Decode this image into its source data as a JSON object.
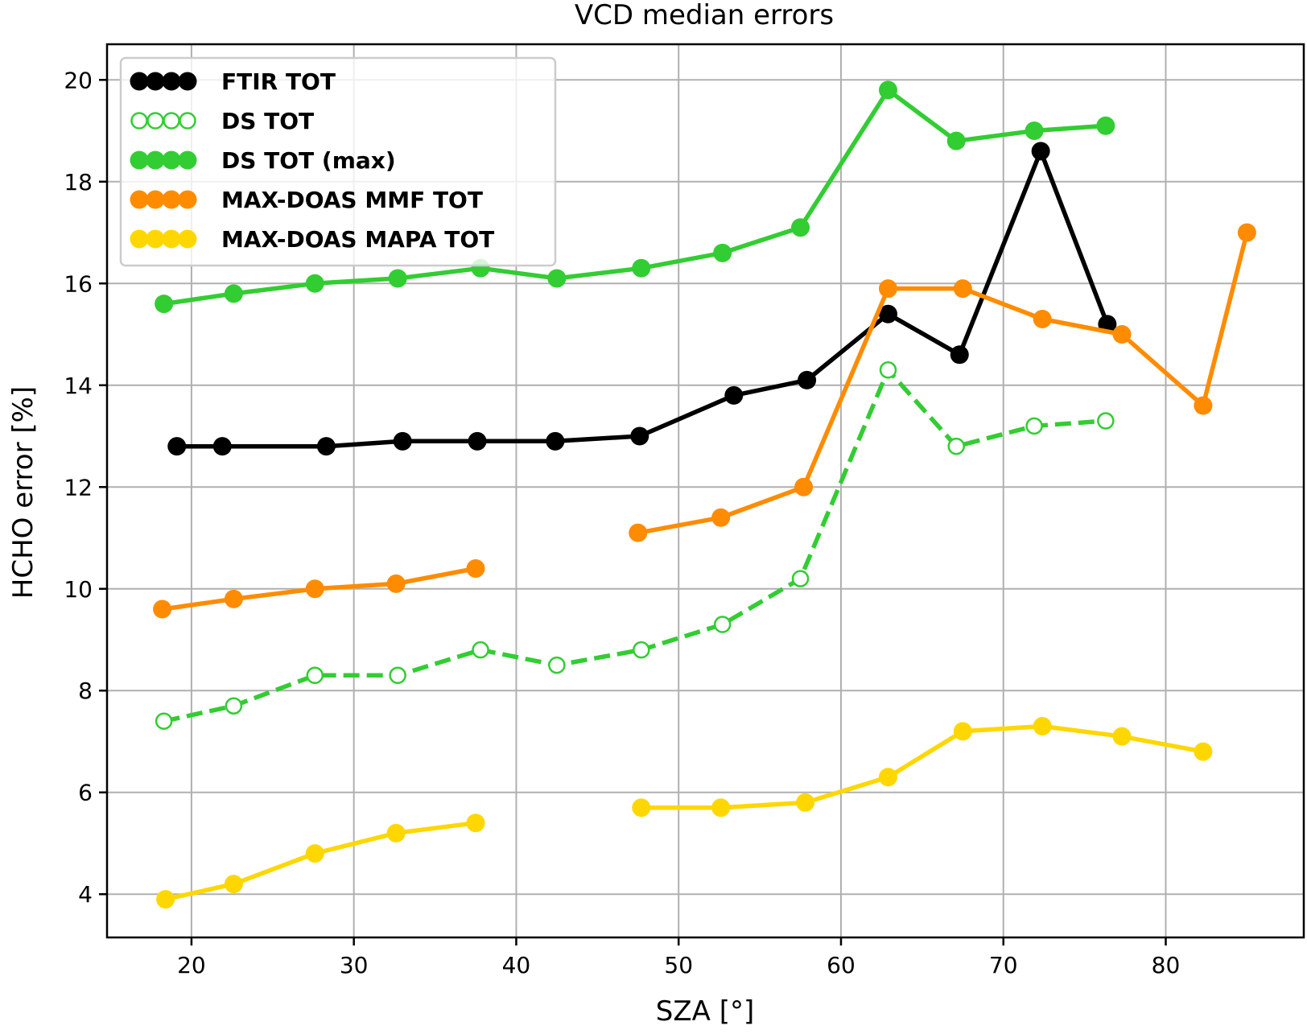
{
  "chart_data": {
    "type": "line",
    "title": "VCD median errors",
    "xlabel": "SZA [°]",
    "ylabel": "HCHO error [%]",
    "xlim": [
      14.8,
      88.5
    ],
    "ylim": [
      3.15,
      20.7
    ],
    "xticks": [
      20,
      30,
      40,
      50,
      60,
      70,
      80
    ],
    "yticks": [
      4,
      6,
      8,
      10,
      12,
      14,
      16,
      18,
      20
    ],
    "xtick_labels": [
      "20",
      "30",
      "40",
      "50",
      "60",
      "70",
      "80"
    ],
    "ytick_labels": [
      "4",
      "6",
      "8",
      "10",
      "12",
      "14",
      "16",
      "18",
      "20"
    ],
    "grid": true,
    "legend_position": "top-left",
    "series": [
      {
        "name": "FTIR TOT",
        "color": "#000000",
        "marker": "filled",
        "line": "solid",
        "segments": [
          [
            [
              19.1,
              12.8
            ],
            [
              21.9,
              12.8
            ],
            [
              28.3,
              12.8
            ],
            [
              33.0,
              12.9
            ],
            [
              37.6,
              12.9
            ],
            [
              42.4,
              12.9
            ],
            [
              47.6,
              13.0
            ],
            [
              53.4,
              13.8
            ],
            [
              57.9,
              14.1
            ],
            [
              62.9,
              15.4
            ],
            [
              67.3,
              14.6
            ],
            [
              72.3,
              18.6
            ],
            [
              76.4,
              15.2
            ]
          ]
        ]
      },
      {
        "name": "DS TOT",
        "color": "#32cd32",
        "marker": "open",
        "line": "dashed",
        "segments": [
          [
            [
              18.3,
              7.4
            ],
            [
              22.6,
              7.7
            ],
            [
              27.6,
              8.3
            ],
            [
              32.7,
              8.3
            ],
            [
              37.8,
              8.8
            ],
            [
              42.5,
              8.5
            ],
            [
              47.7,
              8.8
            ],
            [
              52.7,
              9.3
            ],
            [
              57.5,
              10.2
            ],
            [
              62.9,
              14.3
            ],
            [
              67.1,
              12.8
            ],
            [
              71.9,
              13.2
            ],
            [
              76.3,
              13.3
            ]
          ]
        ]
      },
      {
        "name": "DS TOT (max)",
        "color": "#32cd32",
        "marker": "filled",
        "line": "solid",
        "segments": [
          [
            [
              18.3,
              15.6
            ],
            [
              22.6,
              15.8
            ],
            [
              27.6,
              16.0
            ],
            [
              32.7,
              16.1
            ],
            [
              37.8,
              16.3
            ],
            [
              42.5,
              16.1
            ],
            [
              47.7,
              16.3
            ],
            [
              52.7,
              16.6
            ],
            [
              57.5,
              17.1
            ],
            [
              62.9,
              19.8
            ],
            [
              67.1,
              18.8
            ],
            [
              71.9,
              19.0
            ],
            [
              76.3,
              19.1
            ]
          ]
        ]
      },
      {
        "name": "MAX-DOAS MMF TOT",
        "color": "#ff8c00",
        "marker": "filled",
        "line": "solid",
        "segments": [
          [
            [
              18.2,
              9.6
            ],
            [
              22.6,
              9.8
            ],
            [
              27.6,
              10.0
            ],
            [
              32.6,
              10.1
            ],
            [
              37.5,
              10.4
            ]
          ],
          [
            [
              47.5,
              11.1
            ],
            [
              52.6,
              11.4
            ],
            [
              57.7,
              12.0
            ],
            [
              62.9,
              15.9
            ],
            [
              67.5,
              15.9
            ],
            [
              72.4,
              15.3
            ],
            [
              77.3,
              15.0
            ],
            [
              82.3,
              13.6
            ],
            [
              85.0,
              17.0
            ]
          ]
        ]
      },
      {
        "name": "MAX-DOAS MAPA TOT",
        "color": "#ffd700",
        "marker": "filled",
        "line": "solid",
        "segments": [
          [
            [
              18.4,
              3.9
            ],
            [
              22.6,
              4.2
            ],
            [
              27.6,
              4.8
            ],
            [
              32.6,
              5.2
            ],
            [
              37.5,
              5.4
            ]
          ],
          [
            [
              47.7,
              5.7
            ],
            [
              52.6,
              5.7
            ],
            [
              57.8,
              5.8
            ],
            [
              62.9,
              6.3
            ],
            [
              67.5,
              7.2
            ],
            [
              72.4,
              7.3
            ],
            [
              77.3,
              7.1
            ],
            [
              82.3,
              6.8
            ]
          ]
        ]
      }
    ]
  }
}
